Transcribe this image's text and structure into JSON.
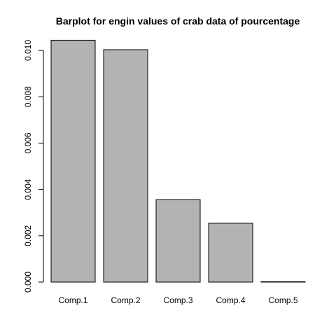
{
  "chart_data": {
    "type": "bar",
    "title": "Barplot for engin values of crab data of pourcentage",
    "xlabel": "",
    "ylabel": "",
    "categories": [
      "Comp.1",
      "Comp.2",
      "Comp.3",
      "Comp.4",
      "Comp.5"
    ],
    "values": [
      0.01044,
      0.01003,
      0.00356,
      0.00254,
      1e-05
    ],
    "ylim": [
      0,
      0.0104
    ],
    "yticks": [
      0,
      0.002,
      0.004,
      0.006,
      0.008,
      0.01
    ],
    "ytick_labels": [
      "0.000",
      "0.002",
      "0.004",
      "0.006",
      "0.008",
      "0.010"
    ],
    "grid": false,
    "legend": "none",
    "bar_fill": "#b3b3b3",
    "bar_stroke": "#000000"
  }
}
